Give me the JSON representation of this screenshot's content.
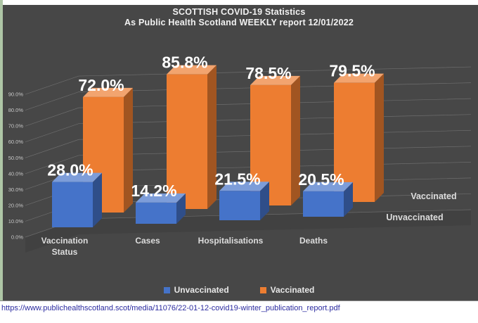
{
  "page": {
    "title_line1": "SCOTTISH COVID-19 Statistics",
    "title_line2": "As Public Health Scotland WEEKLY report 12/01/2022",
    "source_url": "https://www.publichealthscotland.scot/media/11076/22-01-12-covid19-winter_publication_report.pdf"
  },
  "chart_data": {
    "type": "bar",
    "style": "3d-clustered-column",
    "title": "SCOTTISH COVID-19 Statistics\nAs Public Health Scotland WEEKLY report 12/01/2022",
    "categories": [
      "Vaccination Status",
      "Cases",
      "Hospitalisations",
      "Deaths"
    ],
    "series": [
      {
        "name": "Unvaccinated",
        "color": "#4573C9",
        "values": [
          28.0,
          14.2,
          21.5,
          20.5
        ]
      },
      {
        "name": "Vaccinated",
        "color": "#ED7D31",
        "values": [
          72.0,
          85.8,
          78.5,
          79.5
        ]
      }
    ],
    "ylim": [
      0,
      90
    ],
    "ytick_step": 10,
    "ytick_labels": [
      "0.0%",
      "10.0%",
      "20.0%",
      "30.0%",
      "40.0%",
      "50.0%",
      "60.0%",
      "70.0%",
      "80.0%",
      "90.0%"
    ],
    "grid": true,
    "data_labels": true,
    "data_label_format": "0.0%",
    "legend_position": "bottom",
    "legend_entries": [
      "Unvaccinated",
      "Vaccinated"
    ],
    "series_axis_labels": [
      "Vaccinated",
      "Unvaccinated"
    ]
  },
  "colors": {
    "background": "#474747",
    "panel_floor": "#414141",
    "gridline": "#8c8c8c",
    "title_text": "#f2f2f2",
    "tick_text": "#c9c9c9",
    "category_text": "#dddddd",
    "data_label_text": "#ffffff",
    "url_text": "#2b2ba0",
    "left_strip": "#aec6a6",
    "unvaccinated": "#4573C9",
    "vaccinated": "#ED7D31"
  }
}
